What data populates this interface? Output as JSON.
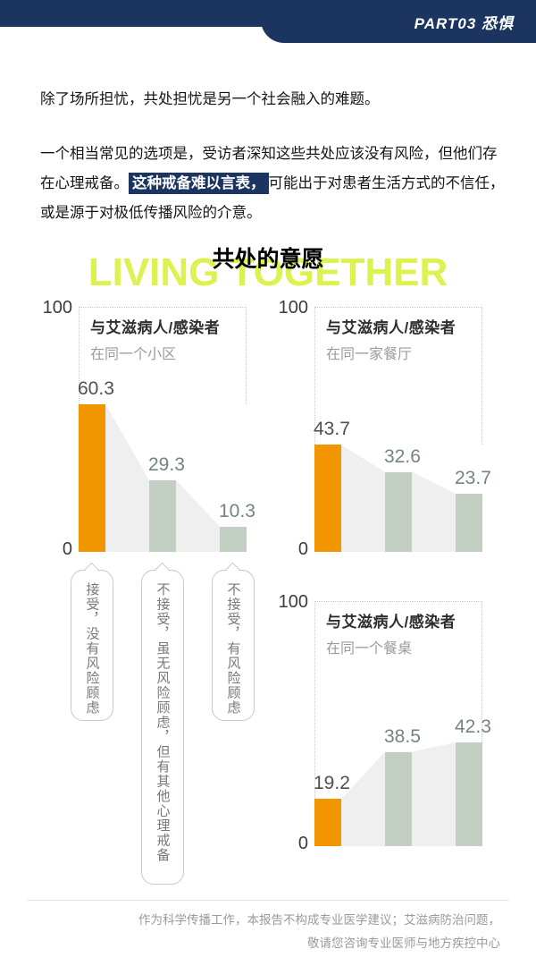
{
  "header": {
    "part_label": "PART03 恐惧"
  },
  "paragraphs": {
    "p1": "除了场所担忧，共处担忧是另一个社会融入的难题。",
    "p2_before": "一个相当常见的选项是，受访者深知这些共处应该没有风险，但他们存在心理戒备。",
    "p2_highlight": "这种戒备难以言表，",
    "p2_after": "可能出于对患者生活方式的不信任，或是源于对极低传播风险的介意。"
  },
  "section_title": {
    "en": "LIVING TOGETHER",
    "zh": "共处的意愿"
  },
  "axis": {
    "top": "100",
    "bottom": "0"
  },
  "chart_data": [
    {
      "type": "bar",
      "title": "与艾滋病人/感染者",
      "subtitle": "在同一个小区",
      "categories": [
        "接受，没有风险顾虑",
        "不接受，虽无风险顾虑，但有其他心理戒备",
        "不接受，有风险顾虑"
      ],
      "values": [
        60.3,
        29.3,
        10.3
      ],
      "value_labels": [
        "60.3",
        "29.3",
        "10.3"
      ],
      "ylim": [
        0,
        100
      ],
      "grid": false,
      "highlight_series_color": "#F29600",
      "other_series_color": "#C4CFC4"
    },
    {
      "type": "bar",
      "title": "与艾滋病人/感染者",
      "subtitle": "在同一家餐厅",
      "categories": [
        "接受，没有风险顾虑",
        "不接受，虽无风险顾虑，但有其他心理戒备",
        "不接受，有风险顾虑"
      ],
      "values": [
        43.7,
        32.6,
        23.7
      ],
      "value_labels": [
        "43.7",
        "32.6",
        "23.7"
      ],
      "ylim": [
        0,
        100
      ],
      "grid": false,
      "highlight_series_color": "#F29600",
      "other_series_color": "#C4CFC4"
    },
    {
      "type": "bar",
      "title": "与艾滋病人/感染者",
      "subtitle": "在同一个餐桌",
      "categories": [
        "接受，没有风险顾虑",
        "不接受，虽无风险顾虑，但有其他心理戒备",
        "不接受，有风险顾虑"
      ],
      "values": [
        19.2,
        38.5,
        42.3
      ],
      "value_labels": [
        "19.2",
        "38.5",
        "42.3"
      ],
      "ylim": [
        0,
        100
      ],
      "grid": false,
      "highlight_series_color": "#F29600",
      "other_series_color": "#C4CFC4"
    }
  ],
  "footer": {
    "line1": "作为科学传播工作，本报告不构成专业医学建议；艾滋病防治问题，",
    "line2": "敬请您咨询专业医师与地方疾控中心"
  },
  "colors": {
    "navy": "#1B3560",
    "orange": "#F29600",
    "bar_gray_green": "#C4CFC4",
    "area_fill": "#EFEFEF",
    "title_yellow": "#DCF24E"
  }
}
